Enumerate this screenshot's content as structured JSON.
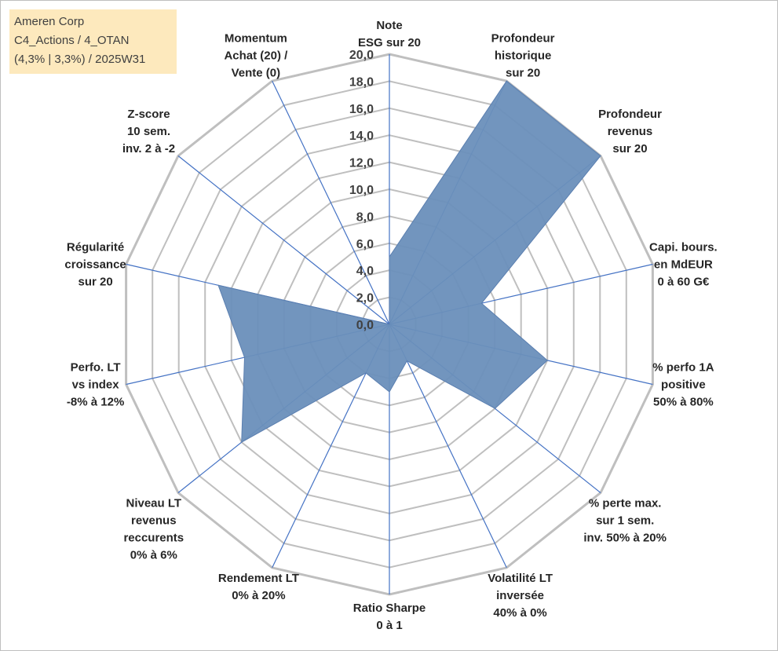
{
  "info": {
    "line1": "Ameren Corp",
    "line2": "C4_Actions / 4_OTAN",
    "line3": "(4,3% | 3,3%) / 2025W31"
  },
  "colors": {
    "grid": "#bfbfbf",
    "spoke": "#4472c4",
    "fill": "#6a8fbb",
    "text": "#262626"
  },
  "chart_data": {
    "type": "radar",
    "rlim": [
      0,
      20
    ],
    "ticks": [
      "0,0",
      "2,0",
      "4,0",
      "6,0",
      "8,0",
      "10,0",
      "12,0",
      "14,0",
      "16,0",
      "18,0",
      "20,0"
    ],
    "tick_values": [
      0,
      2,
      4,
      6,
      8,
      10,
      12,
      14,
      16,
      18,
      20
    ],
    "grid": true,
    "axes": [
      [
        "Note",
        "ESG sur 20"
      ],
      [
        "Profondeur",
        "historique",
        "sur 20"
      ],
      [
        "Profondeur",
        "revenus",
        "sur 20"
      ],
      [
        "Capi. bours.",
        "en MdEUR",
        "0 à 60 G€"
      ],
      [
        "% perfo 1A",
        "positive",
        "50% à 80%"
      ],
      [
        "% perte max.",
        "sur 1 sem.",
        "inv. 50% à 20%"
      ],
      [
        "Volatilité LT",
        "inversée",
        "40% à 0%"
      ],
      [
        "Ratio Sharpe",
        "0 à 1"
      ],
      [
        "Rendement LT",
        "0% à 20%"
      ],
      [
        "Niveau LT",
        "revenus",
        "reccurents",
        "0% à 6%"
      ],
      [
        "Perfo. LT",
        "vs index",
        "-8% à 12%"
      ],
      [
        "Régularité",
        "croissance",
        "sur 20"
      ],
      [
        "Z-score",
        "10 sem.",
        "inv. 2 à -2"
      ],
      [
        "Momentum",
        "Achat (20) /",
        "Vente (0)"
      ]
    ],
    "series": [
      {
        "values": [
          5.0,
          20.0,
          20.0,
          7.0,
          12.0,
          10.0,
          3.0,
          5.0,
          4.0,
          14.0,
          11.0,
          13.0,
          0.0,
          0.0
        ]
      }
    ]
  }
}
